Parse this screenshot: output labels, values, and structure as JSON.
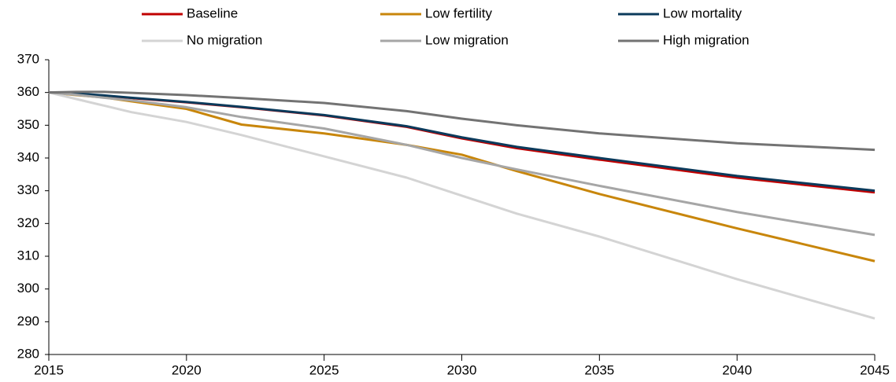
{
  "chart_data": {
    "type": "line",
    "x": [
      2015,
      2016,
      2017,
      2018,
      2020,
      2022,
      2025,
      2028,
      2030,
      2032,
      2035,
      2040,
      2045
    ],
    "series": [
      {
        "name": "Baseline",
        "color": "#c00000",
        "values": [
          360,
          359.6,
          359,
          358.3,
          357,
          355.5,
          353,
          349.5,
          346,
          343,
          339.5,
          334,
          329.5
        ]
      },
      {
        "name": "Low fertility",
        "color": "#c8860b",
        "values": [
          360,
          359.2,
          358.5,
          357.3,
          355,
          350.2,
          347.5,
          344,
          341,
          336,
          329,
          318.5,
          308.5
        ]
      },
      {
        "name": "Low mortality",
        "color": "#0b3a5b",
        "values": [
          360,
          359.7,
          359.1,
          358.4,
          357.1,
          355.6,
          353.1,
          349.7,
          346.3,
          343.4,
          340,
          334.5,
          330
        ]
      },
      {
        "name": "No migration",
        "color": "#d4d4d4",
        "values": [
          360,
          358,
          356,
          354,
          351,
          347,
          340.5,
          334,
          328.5,
          323,
          316,
          303,
          291
        ]
      },
      {
        "name": "Low migration",
        "color": "#a6a6a6",
        "values": [
          360,
          359.3,
          358.4,
          357.6,
          355.5,
          352.5,
          349,
          344,
          340,
          336.5,
          331.5,
          323.5,
          316.5
        ]
      },
      {
        "name": "High migration",
        "color": "#737373",
        "values": [
          360,
          360.2,
          360.2,
          359.9,
          359.2,
          358.3,
          356.8,
          354.3,
          352,
          350,
          347.5,
          344.5,
          342.5
        ]
      }
    ],
    "xlim": [
      2015,
      2045
    ],
    "xticks": [
      2015,
      2020,
      2025,
      2030,
      2035,
      2040,
      2045
    ],
    "ylim": [
      280,
      370
    ],
    "yticks": [
      280,
      290,
      300,
      310,
      320,
      330,
      340,
      350,
      360,
      370
    ],
    "grid": false,
    "legend": "top"
  }
}
